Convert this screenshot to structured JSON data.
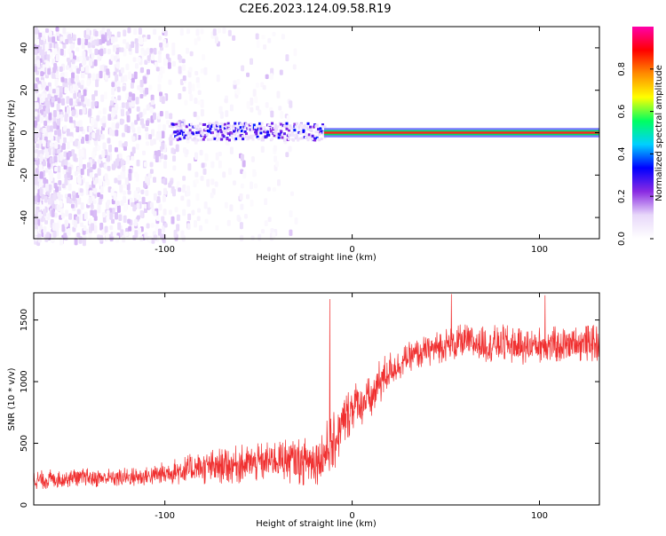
{
  "title": "C2E6.2023.124.09.58.R19",
  "chart_data": [
    {
      "type": "heatmap",
      "xlabel": "Height of straight line (km)",
      "ylabel": "Frequency (Hz)",
      "xlim": [
        -170,
        132
      ],
      "ylim": [
        -50,
        50
      ],
      "xticks": [
        -100,
        0,
        100
      ],
      "xtick_labels": [
        "-100",
        "0",
        "100"
      ],
      "yticks": [
        -40,
        -20,
        0,
        20,
        40
      ],
      "ytick_labels": [
        "-40",
        "-20",
        "0",
        "20",
        "40"
      ],
      "colorbar": {
        "label": "Normalized spectral amplitude",
        "range": [
          0,
          1
        ],
        "ticks": [
          0.0,
          0.2,
          0.4,
          0.6,
          0.8
        ],
        "tick_labels": [
          "0.0",
          "0.2",
          "0.4",
          "0.6",
          "0.8"
        ],
        "colors": [
          "#ffffff",
          "#e8d8fa",
          "#8a2be2",
          "#0000ff",
          "#00d0ff",
          "#00ff60",
          "#ffff00",
          "#ff8c00",
          "#ff0000",
          "#ff00aa"
        ]
      },
      "regions": [
        {
          "desc": "noise",
          "x": [
            -170,
            -100
          ],
          "freq": [
            -50,
            50
          ],
          "amplitude": 0.1
        },
        {
          "desc": "noise",
          "x": [
            -100,
            -35
          ],
          "freq": [
            -50,
            50
          ],
          "amplitude": 0.03
        },
        {
          "desc": "carrier",
          "x": [
            -95,
            -15
          ],
          "freq": [
            -4,
            5
          ],
          "amplitude": 0.3
        },
        {
          "desc": "carrier",
          "x": [
            -15,
            132
          ],
          "freq": [
            -1,
            1
          ],
          "amplitude": 0.85
        }
      ]
    },
    {
      "type": "line",
      "xlabel": "Height of straight line (km)",
      "ylabel": "SNR (10 * v/v)",
      "xlim": [
        -170,
        132
      ],
      "ylim": [
        0,
        1720
      ],
      "xticks": [
        -100,
        0,
        100
      ],
      "xtick_labels": [
        "-100",
        "0",
        "100"
      ],
      "yticks": [
        0,
        500,
        1000,
        1500
      ],
      "ytick_labels": [
        "0",
        "500",
        "1000",
        "1500"
      ],
      "color": "#f03030",
      "x": [
        -170,
        -150,
        -130,
        -110,
        -90,
        -80,
        -70,
        -60,
        -50,
        -40,
        -30,
        -20,
        -15,
        -10,
        -5,
        0,
        5,
        10,
        15,
        20,
        25,
        30,
        40,
        50,
        60,
        70,
        80,
        90,
        100,
        110,
        120,
        132
      ],
      "y": [
        200,
        220,
        220,
        230,
        280,
        300,
        320,
        330,
        340,
        370,
        360,
        350,
        420,
        500,
        650,
        800,
        830,
        850,
        1000,
        1100,
        1130,
        1200,
        1250,
        1300,
        1320,
        1300,
        1310,
        1280,
        1300,
        1300,
        1310,
        1310
      ],
      "spread": [
        160,
        160,
        160,
        160,
        240,
        280,
        300,
        320,
        320,
        340,
        400,
        400,
        500,
        500,
        450,
        400,
        400,
        380,
        400,
        300,
        250,
        240,
        260,
        280,
        300,
        300,
        320,
        300,
        300,
        300,
        300,
        300
      ],
      "peaks": [
        {
          "x": -12,
          "y": 1670
        },
        {
          "x": 53,
          "y": 1710
        },
        {
          "x": 103,
          "y": 1700
        }
      ]
    }
  ]
}
